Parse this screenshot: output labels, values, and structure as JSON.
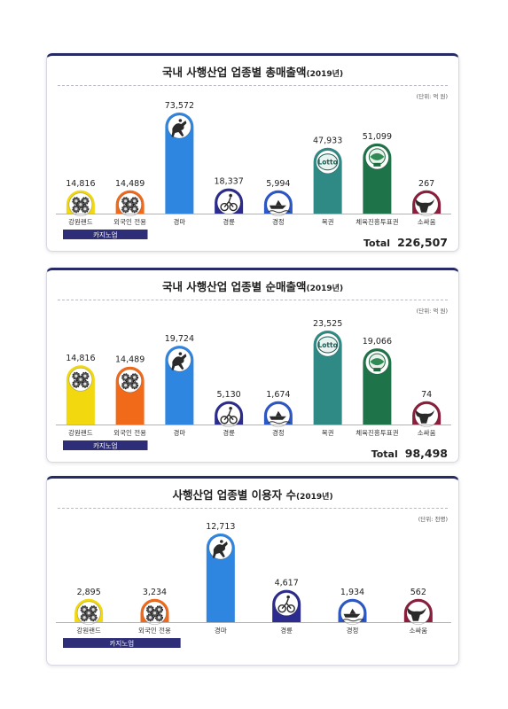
{
  "charts": [
    {
      "title": "국내 사행산업 업종별 총매출액",
      "title_year": "(2019년)",
      "unit": "(단위: 억 원)",
      "total_label": "Total",
      "total_value": "226,507",
      "group_label": "카지노업",
      "group_count": 2
    },
    {
      "title": "국내 사행산업 업종별 순매출액",
      "title_year": "(2019년)",
      "unit": "(단위: 억 원)",
      "total_label": "Total",
      "total_value": "98,498",
      "group_label": "카지노업",
      "group_count": 2
    },
    {
      "title": "사행산업 업종별 이용자 수",
      "title_year": "(2019년)",
      "unit": "(단위: 천명)",
      "total_label": "",
      "total_value": "",
      "group_label": "카지노업",
      "group_count": 2
    }
  ],
  "chart_data": [
    {
      "type": "bar",
      "title": "국내 사행산업 업종별 총매출액(2019년)",
      "categories": [
        "강원랜드",
        "외국인 전용",
        "경마",
        "경륜",
        "경정",
        "복권",
        "체육진흥투표권",
        "소싸움"
      ],
      "values": [
        14816,
        14489,
        73572,
        18337,
        5994,
        47933,
        51099,
        267
      ],
      "value_labels": [
        "14,816",
        "14,489",
        "73,572",
        "18,337",
        "5,994",
        "47,933",
        "51,099",
        "267"
      ],
      "icons": [
        "casino-chips-icon",
        "casino-chips-icon",
        "horse-racing-icon",
        "cycling-icon",
        "boat-racing-icon",
        "lotto-icon",
        "sports-toto-icon",
        "bullfight-icon"
      ],
      "colors": [
        "#f2d80f",
        "#f06a1a",
        "#2e86e0",
        "#2c2c8e",
        "#2b58c9",
        "#2f8a85",
        "#1e7348",
        "#8a1e3c"
      ],
      "ylim": [
        0,
        73572
      ]
    },
    {
      "type": "bar",
      "title": "국내 사행산업 업종별 순매출액(2019년)",
      "categories": [
        "강원랜드",
        "외국인 전용",
        "경마",
        "경륜",
        "경정",
        "복권",
        "체육진흥투표권",
        "소싸움"
      ],
      "values": [
        14816,
        14489,
        19724,
        5130,
        1674,
        23525,
        19066,
        74
      ],
      "value_labels": [
        "14,816",
        "14,489",
        "19,724",
        "5,130",
        "1,674",
        "23,525",
        "19,066",
        "74"
      ],
      "icons": [
        "casino-chips-icon",
        "casino-chips-icon",
        "horse-racing-icon",
        "cycling-icon",
        "boat-racing-icon",
        "lotto-icon",
        "sports-toto-icon",
        "bullfight-icon"
      ],
      "colors": [
        "#f2d80f",
        "#f06a1a",
        "#2e86e0",
        "#2c2c8e",
        "#2b58c9",
        "#2f8a85",
        "#1e7348",
        "#8a1e3c"
      ],
      "ylim": [
        0,
        23525
      ]
    },
    {
      "type": "bar",
      "title": "사행산업 업종별 이용자 수(2019년)",
      "categories": [
        "강원랜드",
        "외국인 전용",
        "경마",
        "경륜",
        "경정",
        "소싸움"
      ],
      "values": [
        2895,
        3234,
        12713,
        4617,
        1934,
        562
      ],
      "value_labels": [
        "2,895",
        "3,234",
        "12,713",
        "4,617",
        "1,934",
        "562"
      ],
      "icons": [
        "casino-chips-icon",
        "casino-chips-icon",
        "horse-racing-icon",
        "cycling-icon",
        "boat-racing-icon",
        "bullfight-icon"
      ],
      "colors": [
        "#f2d80f",
        "#f06a1a",
        "#2e86e0",
        "#2c2c8e",
        "#2b58c9",
        "#8a1e3c"
      ],
      "ylim": [
        0,
        12713
      ]
    }
  ]
}
